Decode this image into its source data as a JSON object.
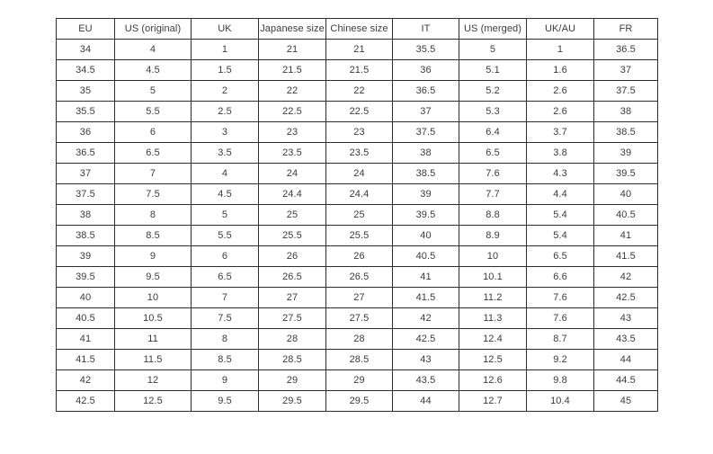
{
  "chart_data": {
    "type": "table",
    "title": "",
    "columns": [
      "EU",
      "US (original)",
      "UK",
      "Japanese size",
      "Chinese size",
      "IT",
      "US (merged)",
      "UK/AU",
      "FR"
    ],
    "rows": [
      [
        "34",
        "4",
        "1",
        "21",
        "21",
        "35.5",
        "5",
        "1",
        "36.5"
      ],
      [
        "34.5",
        "4.5",
        "1.5",
        "21.5",
        "21.5",
        "36",
        "5.1",
        "1.6",
        "37"
      ],
      [
        "35",
        "5",
        "2",
        "22",
        "22",
        "36.5",
        "5.2",
        "2.6",
        "37.5"
      ],
      [
        "35.5",
        "5.5",
        "2.5",
        "22.5",
        "22.5",
        "37",
        "5.3",
        "2.6",
        "38"
      ],
      [
        "36",
        "6",
        "3",
        "23",
        "23",
        "37.5",
        "6.4",
        "3.7",
        "38.5"
      ],
      [
        "36.5",
        "6.5",
        "3.5",
        "23.5",
        "23.5",
        "38",
        "6.5",
        "3.8",
        "39"
      ],
      [
        "37",
        "7",
        "4",
        "24",
        "24",
        "38.5",
        "7.6",
        "4.3",
        "39.5"
      ],
      [
        "37.5",
        "7.5",
        "4.5",
        "24.4",
        "24.4",
        "39",
        "7.7",
        "4.4",
        "40"
      ],
      [
        "38",
        "8",
        "5",
        "25",
        "25",
        "39.5",
        "8.8",
        "5.4",
        "40.5"
      ],
      [
        "38.5",
        "8.5",
        "5.5",
        "25.5",
        "25.5",
        "40",
        "8.9",
        "5.4",
        "41"
      ],
      [
        "39",
        "9",
        "6",
        "26",
        "26",
        "40.5",
        "10",
        "6.5",
        "41.5"
      ],
      [
        "39.5",
        "9.5",
        "6.5",
        "26.5",
        "26.5",
        "41",
        "10.1",
        "6.6",
        "42"
      ],
      [
        "40",
        "10",
        "7",
        "27",
        "27",
        "41.5",
        "11.2",
        "7.6",
        "42.5"
      ],
      [
        "40.5",
        "10.5",
        "7.5",
        "27.5",
        "27.5",
        "42",
        "11.3",
        "7.6",
        "43"
      ],
      [
        "41",
        "11",
        "8",
        "28",
        "28",
        "42.5",
        "12.4",
        "8.7",
        "43.5"
      ],
      [
        "41.5",
        "11.5",
        "8.5",
        "28.5",
        "28.5",
        "43",
        "12.5",
        "9.2",
        "44"
      ],
      [
        "42",
        "12",
        "9",
        "29",
        "29",
        "43.5",
        "12.6",
        "9.8",
        "44.5"
      ],
      [
        "42.5",
        "12.5",
        "9.5",
        "29.5",
        "29.5",
        "44",
        "12.7",
        "10.4",
        "45"
      ]
    ]
  },
  "colors": {
    "background": "#ffffff",
    "border": "#2d2d2d",
    "text": "#3b3b3b"
  }
}
